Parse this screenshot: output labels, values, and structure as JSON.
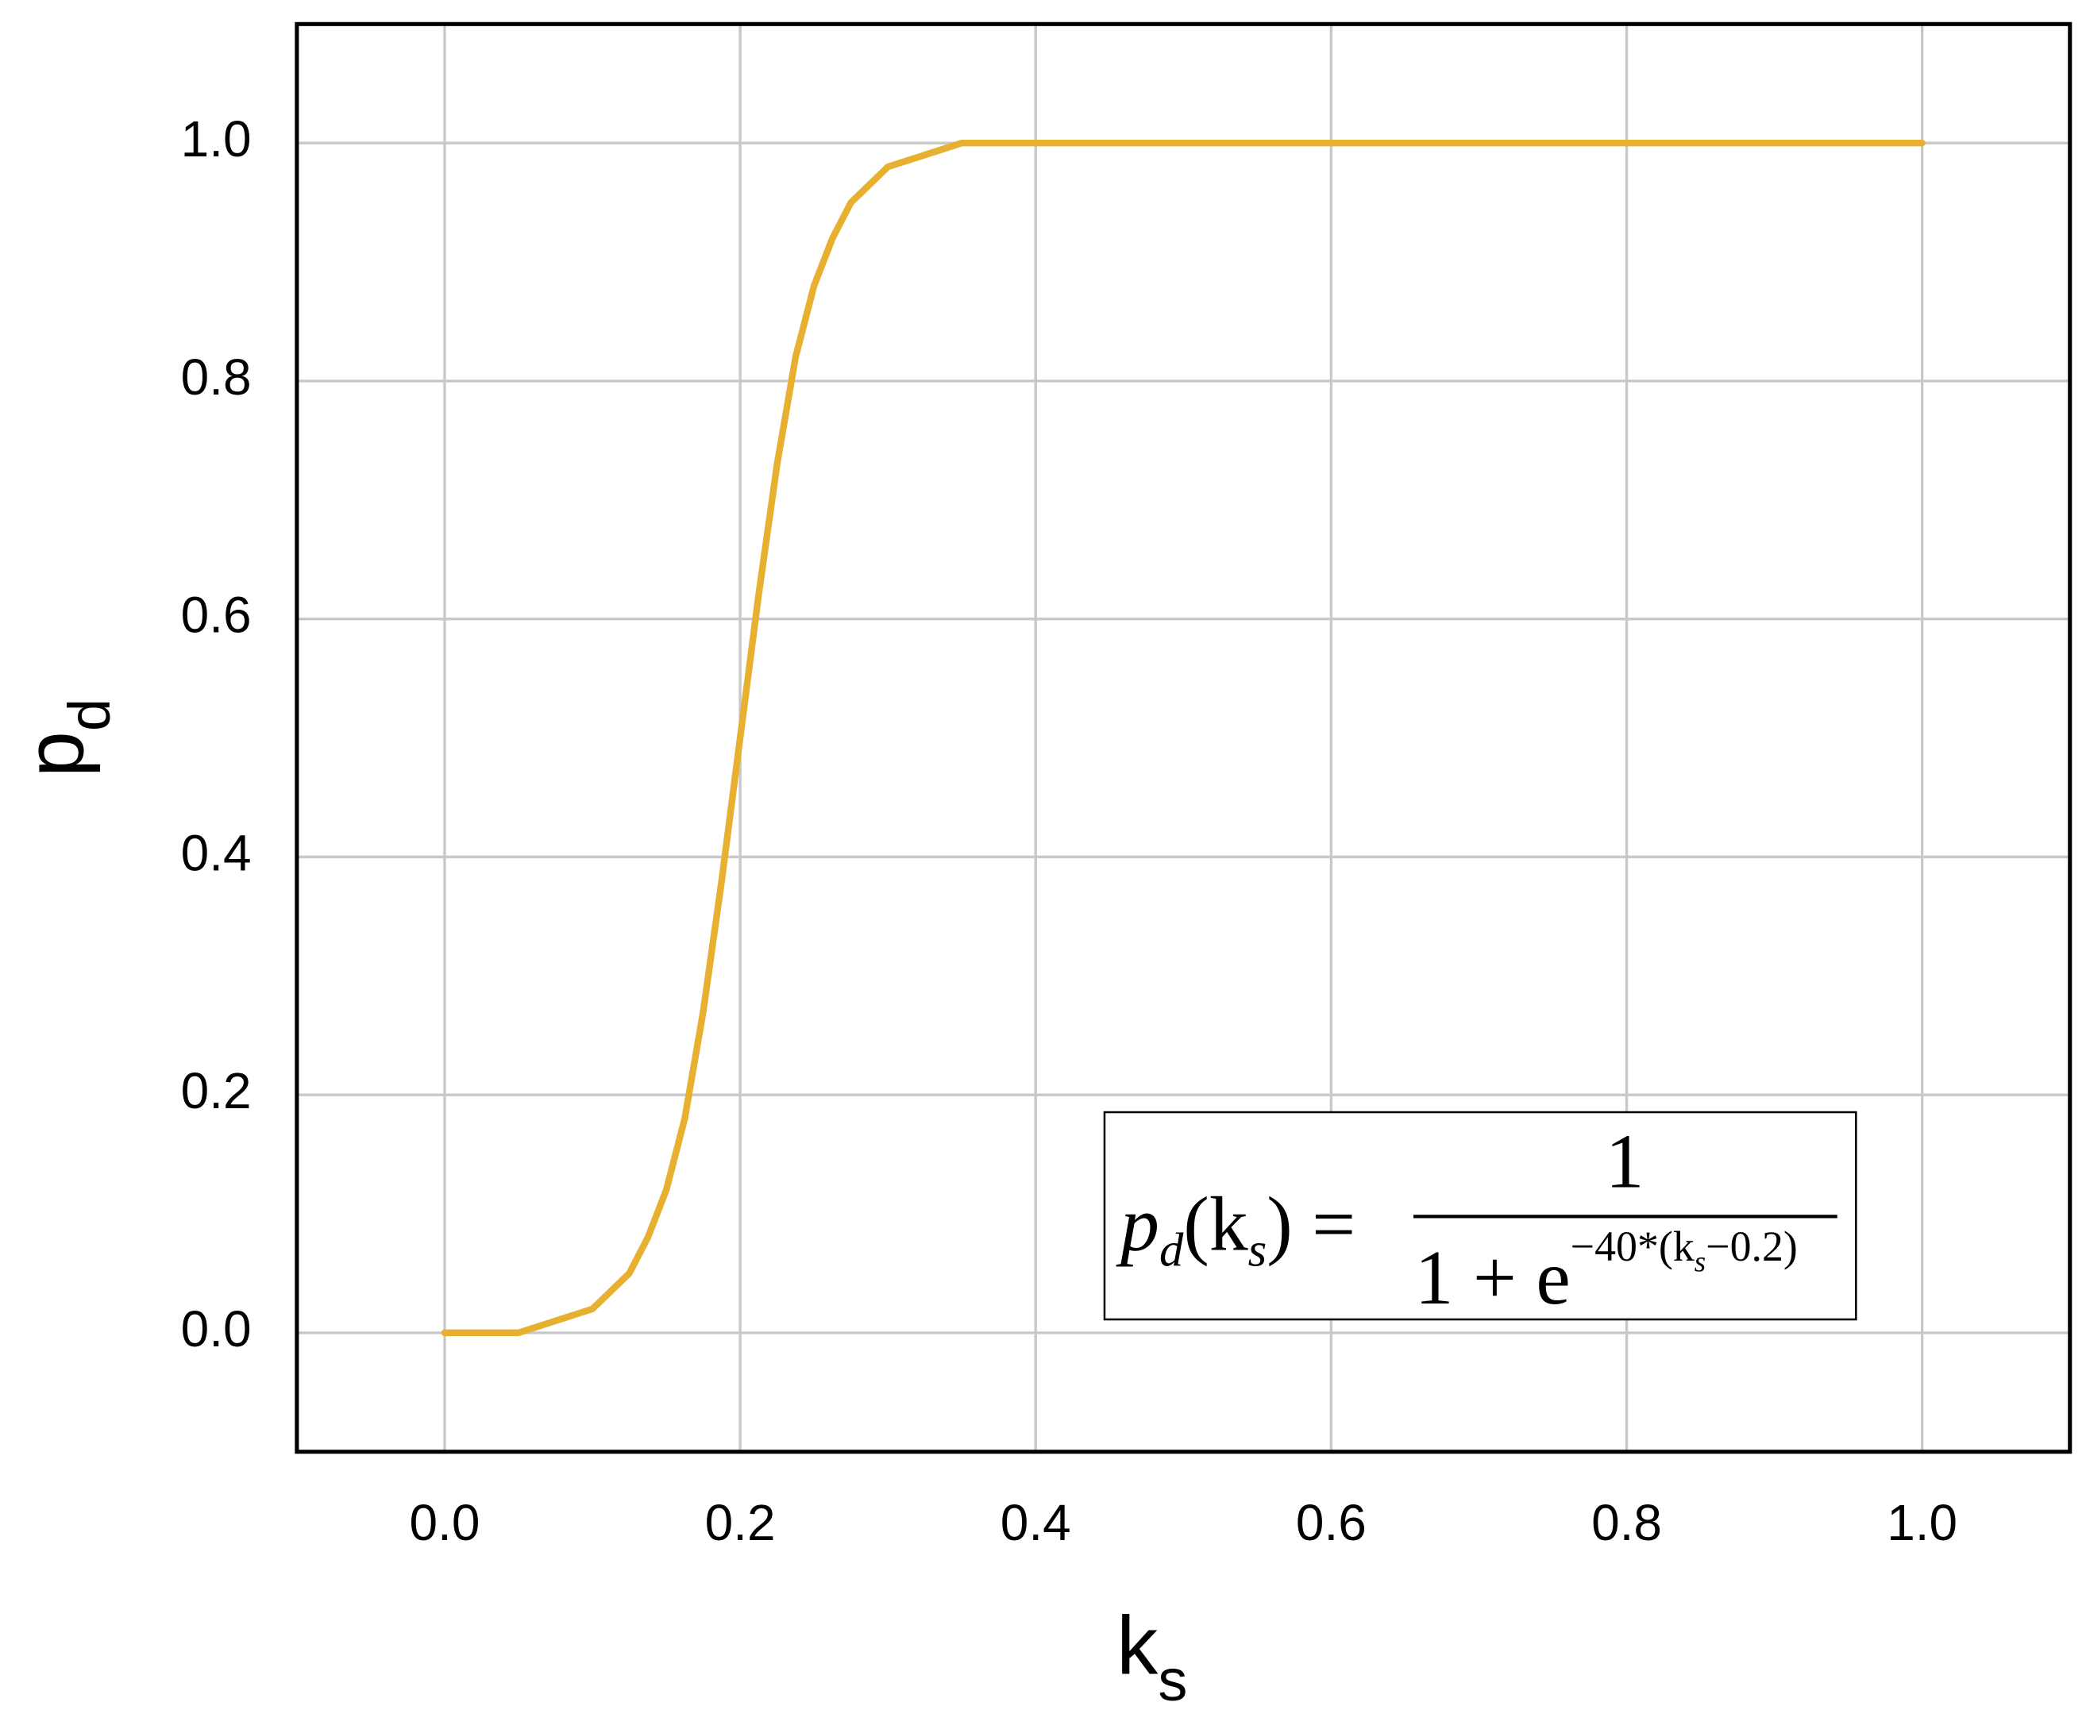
{
  "chart_data": {
    "type": "line",
    "xlabel": {
      "text": "k",
      "subscript": "s"
    },
    "ylabel": {
      "text": "p",
      "subscript": "d"
    },
    "annotation": [
      "p",
      "d",
      "(k",
      "s",
      ") =",
      "1",
      "1 + e",
      "−40*(k",
      "s",
      "−0.2)"
    ],
    "x": [
      0,
      0.05,
      0.075,
      0.1,
      0.125,
      0.1375,
      0.15,
      0.1625,
      0.175,
      0.1875,
      0.2,
      0.2125,
      0.225,
      0.2375,
      0.25,
      0.2625,
      0.275,
      0.3,
      0.35,
      0.4,
      0.5,
      0.6,
      0.7,
      0.8,
      0.9,
      1.0
    ],
    "values": [
      0.0,
      0.0,
      0.01,
      0.02,
      0.05,
      0.08,
      0.12,
      0.18,
      0.27,
      0.38,
      0.5,
      0.62,
      0.73,
      0.82,
      0.88,
      0.92,
      0.95,
      0.98,
      1.0,
      1.0,
      1.0,
      1.0,
      1.0,
      1.0,
      1.0,
      1.0
    ],
    "color": "#e8b030",
    "xlim": [
      -0.1,
      1.1
    ],
    "ylim": [
      -0.1,
      1.1
    ],
    "xticks": [
      {
        "value": 0,
        "label": "0.0"
      },
      0.2,
      0.4,
      0.6,
      0.8,
      {
        "value": 1,
        "label": "1.0"
      }
    ],
    "yticks": [
      {
        "value": 0,
        "label": "0.0"
      },
      0.2,
      0.4,
      0.6,
      0.8,
      {
        "value": 1,
        "label": "1.0"
      }
    ],
    "grid": true
  }
}
